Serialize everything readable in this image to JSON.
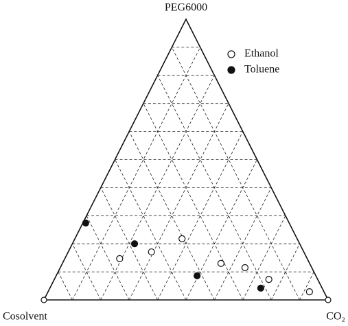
{
  "chart_data": {
    "type": "ternary",
    "top_label": "PEG6000",
    "left_label": "Cosolvent",
    "right_label": "CO₂",
    "ticks": [
      10,
      20,
      30,
      40,
      50,
      60,
      70,
      80,
      90
    ],
    "grid": true,
    "legend": "upper right",
    "series": [
      {
        "name": "Ethanol",
        "filled": false,
        "color": "#111111",
        "peg": [
          21.8,
          14.7,
          17.1,
          13.0,
          11.5,
          7.3,
          2.9
        ],
        "co2": [
          37.7,
          19.3,
          29.3,
          55.8,
          65.0,
          75.5,
          92.0
        ]
      },
      {
        "name": "Toluene",
        "filled": true,
        "color": "#111111",
        "peg": [
          27.4,
          20.0,
          8.6,
          4.2
        ],
        "co2": [
          1.0,
          21.9,
          49.6,
          74.2
        ]
      }
    ]
  }
}
